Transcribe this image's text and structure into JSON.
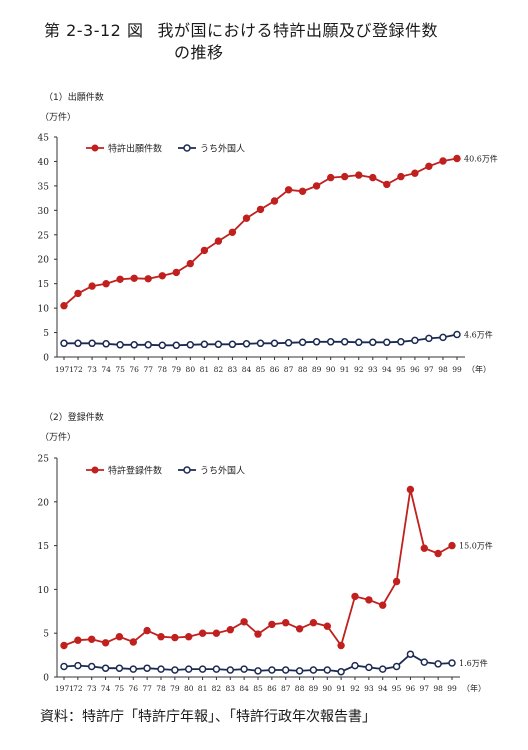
{
  "figure": {
    "number": "第 2-3-12 図",
    "title_line1": "我が国における特許出願及び登録件数",
    "title_line2": "の推移"
  },
  "source": "資料：特許庁「特許庁年報」、「特許行政年次報告書」",
  "chart_data": [
    {
      "type": "line",
      "title": "（1）出願件数",
      "ylabel": "（万件）",
      "xlabel": "（年）",
      "ylim": [
        0,
        45
      ],
      "yticks": [
        0,
        5,
        10,
        15,
        20,
        25,
        30,
        35,
        40,
        45
      ],
      "grid": false,
      "legend_position": "top-left",
      "categories": [
        "1971",
        "72",
        "73",
        "74",
        "75",
        "76",
        "77",
        "78",
        "79",
        "80",
        "81",
        "82",
        "83",
        "84",
        "85",
        "86",
        "87",
        "88",
        "89",
        "90",
        "91",
        "92",
        "93",
        "94",
        "95",
        "96",
        "97",
        "98",
        "99"
      ],
      "xtick_labels": [
        "1971",
        "72",
        "73",
        "74",
        "75",
        "76",
        "77",
        "78",
        "79",
        "80",
        "81",
        "82",
        "83",
        "84",
        "85",
        "86",
        "87",
        "88",
        "89",
        "90",
        "91",
        "92",
        "93",
        "94",
        "95",
        "96",
        "97",
        "98",
        "99"
      ],
      "series": [
        {
          "name": "特許出願件数",
          "color": "#c0201e",
          "marker": "filled-circle",
          "values": [
            10.5,
            13.0,
            14.5,
            15.0,
            15.9,
            16.1,
            16.0,
            16.6,
            17.3,
            19.1,
            21.8,
            23.7,
            25.5,
            28.4,
            30.2,
            31.9,
            34.2,
            33.9,
            35.0,
            36.7,
            36.9,
            37.2,
            36.7,
            35.3,
            36.9,
            37.6,
            39.0,
            40.1,
            40.6
          ],
          "end_label": "40.6万件"
        },
        {
          "name": "うち外国人",
          "color": "#1c2a52",
          "marker": "open-circle",
          "values": [
            2.8,
            2.8,
            2.8,
            2.7,
            2.5,
            2.5,
            2.5,
            2.4,
            2.4,
            2.5,
            2.6,
            2.6,
            2.6,
            2.7,
            2.8,
            2.8,
            2.9,
            3.0,
            3.1,
            3.1,
            3.1,
            3.0,
            3.0,
            3.0,
            3.1,
            3.4,
            3.8,
            4.0,
            4.6
          ],
          "end_label": "4.6万件"
        }
      ]
    },
    {
      "type": "line",
      "title": "（2）登録件数",
      "ylabel": "（万件）",
      "xlabel": "（年）",
      "ylim": [
        0,
        25
      ],
      "yticks": [
        0,
        5,
        10,
        15,
        20,
        25
      ],
      "grid": false,
      "legend_position": "top-left",
      "categories": [
        "1971",
        "72",
        "73",
        "74",
        "75",
        "76",
        "77",
        "78",
        "79",
        "80",
        "81",
        "82",
        "83",
        "84",
        "85",
        "86",
        "87",
        "88",
        "89",
        "90",
        "91",
        "92",
        "93",
        "94",
        "95",
        "96",
        "97",
        "98",
        "99"
      ],
      "xtick_labels": [
        "1971",
        "72",
        "73",
        "74",
        "75",
        "76",
        "77",
        "78",
        "79",
        "80",
        "81",
        "82",
        "83",
        "84",
        "85",
        "86",
        "87",
        "88",
        "89",
        "90",
        "91",
        "92",
        "93",
        "94",
        "95",
        "96",
        "97",
        "98",
        "99"
      ],
      "series": [
        {
          "name": "特許登録件数",
          "color": "#c0201e",
          "marker": "filled-circle",
          "values": [
            3.6,
            4.2,
            4.3,
            3.9,
            4.6,
            4.0,
            5.3,
            4.6,
            4.5,
            4.6,
            5.0,
            5.0,
            5.4,
            6.3,
            4.9,
            6.0,
            6.2,
            5.5,
            6.2,
            5.8,
            3.6,
            9.2,
            8.8,
            8.2,
            10.9,
            21.4,
            14.7,
            14.1,
            15.0
          ],
          "end_label": "15.0万件"
        },
        {
          "name": "うち外国人",
          "color": "#1c2a52",
          "marker": "open-circle",
          "values": [
            1.2,
            1.3,
            1.2,
            1.0,
            1.0,
            0.9,
            1.0,
            0.9,
            0.8,
            0.9,
            0.9,
            0.9,
            0.8,
            0.9,
            0.7,
            0.8,
            0.8,
            0.7,
            0.8,
            0.8,
            0.6,
            1.3,
            1.1,
            0.9,
            1.2,
            2.6,
            1.7,
            1.5,
            1.6
          ],
          "end_label": "1.6万件"
        }
      ]
    }
  ]
}
